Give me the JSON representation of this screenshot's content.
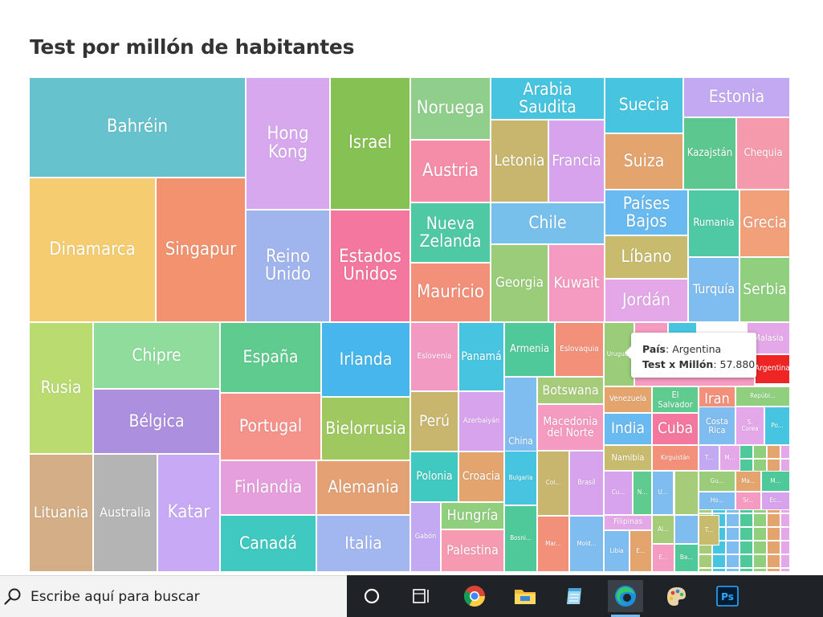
{
  "chart_data": {
    "type": "treemap",
    "title": "Test por millón de habitantes",
    "cells": [
      {
        "label": "Bahréin",
        "color": "#66c2cc"
      },
      {
        "label": "Dinamarca",
        "color": "#f5cd70"
      },
      {
        "label": "Singapur",
        "color": "#f2926e"
      },
      {
        "label": "Hong\nKong",
        "color": "#d7a8ee"
      },
      {
        "label": "Reino\nUnido",
        "color": "#a0b4ee"
      },
      {
        "label": "Israel",
        "color": "#86c153"
      },
      {
        "label": "Estados\nUnidos",
        "color": "#f3779f"
      },
      {
        "label": "Noruega",
        "color": "#8fcf8b"
      },
      {
        "label": "Austria",
        "color": "#f58da8"
      },
      {
        "label": "Nueva\nZelanda",
        "color": "#4fc9a4"
      },
      {
        "label": "Mauricio",
        "color": "#f2907a"
      },
      {
        "label": "Arabia Saudita",
        "color": "#47c5e0"
      },
      {
        "label": "Letonia",
        "color": "#c8b66e"
      },
      {
        "label": "Francia",
        "color": "#d6a3ec"
      },
      {
        "label": "Chile",
        "color": "#78c0ec"
      },
      {
        "label": "Georgia",
        "color": "#9acc7a"
      },
      {
        "label": "Kuwait",
        "color": "#f59ac0"
      },
      {
        "label": "Suecia",
        "color": "#47c5e0"
      },
      {
        "label": "Suiza",
        "color": "#e4a46e"
      },
      {
        "label": "Países\nBajos",
        "color": "#69baf0"
      },
      {
        "label": "Líbano",
        "color": "#c8bb6e"
      },
      {
        "label": "Jordán",
        "color": "#e4a7e8"
      },
      {
        "label": "Estonia",
        "color": "#c3a9f2"
      },
      {
        "label": "Kazajstán",
        "color": "#5cc78e"
      },
      {
        "label": "Chequia",
        "color": "#f59aac"
      },
      {
        "label": "Rumania",
        "color": "#4fc9a4"
      },
      {
        "label": "Grecia",
        "color": "#f2a07a"
      },
      {
        "label": "Turquía",
        "color": "#7fbcf0"
      },
      {
        "label": "Serbia",
        "color": "#8fcf7e"
      },
      {
        "label": "Rusia",
        "color": "#b9db70"
      },
      {
        "label": "Chipre",
        "color": "#8fdc9c"
      },
      {
        "label": "Bélgica",
        "color": "#ad8fe0"
      },
      {
        "label": "Lituania",
        "color": "#d3ae86"
      },
      {
        "label": "Australia",
        "color": "#b4b4b4"
      },
      {
        "label": "Katar",
        "color": "#c8a9f5"
      },
      {
        "label": "España",
        "color": "#5fcb8f"
      },
      {
        "label": "Irlanda",
        "color": "#47b6ec"
      },
      {
        "label": "Portugal",
        "color": "#f5928a"
      },
      {
        "label": "Bielorrusia",
        "color": "#a0c860"
      },
      {
        "label": "Finlandia",
        "color": "#e59fdc"
      },
      {
        "label": "Alemania",
        "color": "#e4a174"
      },
      {
        "label": "Canadá",
        "color": "#3fc9c0"
      },
      {
        "label": "Italia",
        "color": "#a2b6f0"
      },
      {
        "label": "Eslovenia",
        "color": "#f29ac2"
      },
      {
        "label": "Panamá",
        "color": "#47c5e0"
      },
      {
        "label": "Armenia",
        "color": "#4fc99a"
      },
      {
        "label": "Eslovaquia",
        "color": "#f2907a"
      },
      {
        "label": "Perú",
        "color": "#c8b66e"
      },
      {
        "label": "Azerbaiyán",
        "color": "#d6a3ec"
      },
      {
        "label": "China",
        "color": "#7fbcf0"
      },
      {
        "label": "Botswana",
        "color": "#a6cc7a"
      },
      {
        "label": "Macedonia\ndel Norte",
        "color": "#f59ac0"
      },
      {
        "label": "Polonia",
        "color": "#3fc9c0"
      },
      {
        "label": "Croacia",
        "color": "#e4a46e"
      },
      {
        "label": "Hungría",
        "color": "#8fcf7e"
      },
      {
        "label": "Gabón",
        "color": "#c3a9f2"
      },
      {
        "label": "Palestina",
        "color": "#f59ab0"
      },
      {
        "label": "Bulgaria",
        "color": "#47c5e0"
      },
      {
        "label": "Col...",
        "color": "#c8b66e"
      },
      {
        "label": "Brasil",
        "color": "#d6a3ec"
      },
      {
        "label": "Bosni...",
        "color": "#4fc99a"
      },
      {
        "label": "Mar...",
        "color": "#f2907a"
      },
      {
        "label": "Mold...",
        "color": "#7fbcf0"
      },
      {
        "label": "Uruguay",
        "color": "#9acc7a"
      },
      {
        "label": "",
        "color": "#f59ac0"
      },
      {
        "label": "",
        "color": "#47c5e0"
      },
      {
        "label": "Malasia",
        "color": "#e4a7e8"
      },
      {
        "label": "Argentina",
        "color": "#ef2424"
      },
      {
        "label": "Venezuela",
        "color": "#e4a46e"
      },
      {
        "label": "El\nSalvador",
        "color": "#5fcb8f"
      },
      {
        "label": "Iran",
        "color": "#f2907a"
      },
      {
        "label": "Repúbl...",
        "color": "#8fcf7e"
      },
      {
        "label": "India",
        "color": "#69baf0"
      },
      {
        "label": "Cuba",
        "color": "#f3779f"
      },
      {
        "label": "Costa\nRica",
        "color": "#7fbcf0"
      },
      {
        "label": "S.\nCorea",
        "color": "#e4a7e8"
      },
      {
        "label": "Po...",
        "color": "#47c5e0"
      },
      {
        "label": "Namibia",
        "color": "#c8bb6e"
      },
      {
        "label": "Kirguistán",
        "color": "#f2907a"
      },
      {
        "label": "T...",
        "color": "#c3a9f2"
      },
      {
        "label": "M...",
        "color": "#e4a7e8"
      },
      {
        "label": "Cu...",
        "color": "#d6a3ec"
      },
      {
        "label": "N...",
        "color": "#5fcb8f"
      },
      {
        "label": "U...",
        "color": "#7fbcf0"
      },
      {
        "label": "Gu...",
        "color": "#9acc7a"
      },
      {
        "label": "Ma...",
        "color": "#e4a46e"
      },
      {
        "label": "M...",
        "color": "#4fc99a"
      },
      {
        "label": "Ho...",
        "color": "#7fbcf0"
      },
      {
        "label": "Sr...",
        "color": "#f59ac0"
      },
      {
        "label": "Ec...",
        "color": "#d6a3ec"
      },
      {
        "label": "Filipinas",
        "color": "#e4a7e8"
      },
      {
        "label": "Al...",
        "color": "#a6cc7a"
      },
      {
        "label": "T...",
        "color": "#c8bb6e"
      },
      {
        "label": "Libia",
        "color": "#7fbcf0"
      },
      {
        "label": "E...",
        "color": "#e4a46e"
      },
      {
        "label": "E...",
        "color": "#f59ac0"
      },
      {
        "label": "Ba...",
        "color": "#4fc99a"
      }
    ],
    "tooltip": {
      "country_label": "País",
      "country_value": "Argentina",
      "metric_label": "Test x Millón",
      "metric_value": "57.880"
    }
  },
  "taskbar": {
    "search_placeholder": "Escribe aquí para buscar",
    "icons": [
      "search-icon",
      "cortana-circle-icon",
      "task-view-icon",
      "chrome-icon",
      "file-explorer-icon",
      "notepad-icon",
      "edge-icon",
      "paint-icon",
      "photoshop-icon"
    ],
    "photoshop_label": "Ps"
  }
}
